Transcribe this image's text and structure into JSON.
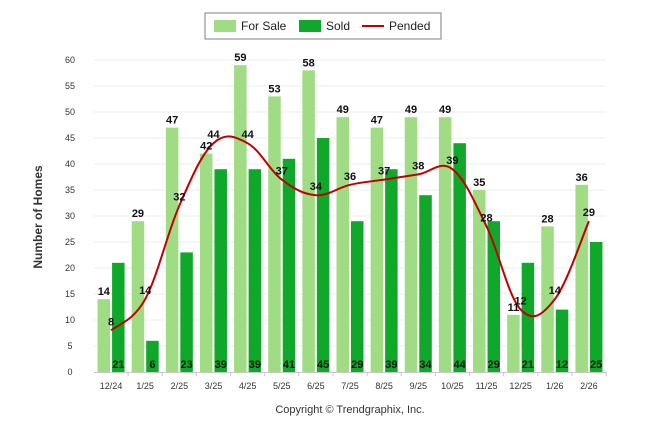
{
  "chart_data": {
    "type": "bar",
    "ylabel": "Number of Homes",
    "ylim": [
      0,
      60
    ],
    "yticks": [
      0,
      5,
      10,
      15,
      20,
      25,
      30,
      35,
      40,
      45,
      50,
      55,
      60
    ],
    "categories": [
      "12/24",
      "1/25",
      "2/25",
      "3/25",
      "4/25",
      "5/25",
      "6/25",
      "7/25",
      "8/25",
      "9/25",
      "10/25",
      "11/25",
      "12/25",
      "1/26",
      "2/26"
    ],
    "series": [
      {
        "name": "For Sale",
        "type": "bar",
        "color": "#9fdc84",
        "values": [
          14,
          29,
          47,
          42,
          59,
          53,
          58,
          49,
          47,
          49,
          49,
          35,
          11,
          28,
          36
        ]
      },
      {
        "name": "Sold",
        "type": "bar",
        "color": "#10a82b",
        "values": [
          21,
          6,
          23,
          39,
          39,
          41,
          45,
          29,
          39,
          34,
          44,
          29,
          21,
          12,
          25
        ]
      },
      {
        "name": "Pended",
        "type": "line",
        "color": "#c00000",
        "values": [
          8,
          14,
          32,
          44,
          44,
          37,
          34,
          36,
          37,
          38,
          39,
          28,
          12,
          14,
          29
        ]
      }
    ],
    "legend_position": "top-center",
    "grid": true,
    "footer": "Copyright © Trendgraphix, Inc."
  }
}
